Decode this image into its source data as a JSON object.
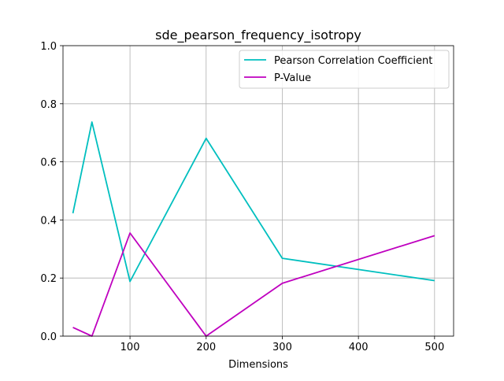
{
  "chart_data": {
    "type": "line",
    "title": "sde_pearson_frequency_isotropy",
    "xlabel": "Dimensions",
    "ylabel": "",
    "xlim": [
      12,
      525
    ],
    "ylim": [
      0,
      1
    ],
    "x_ticks": [
      100,
      200,
      300,
      400,
      500
    ],
    "y_ticks": [
      0.0,
      0.2,
      0.4,
      0.6,
      0.8,
      1.0
    ],
    "x_tick_labels": [
      "100",
      "200",
      "300",
      "400",
      "500"
    ],
    "y_tick_labels": [
      "0.0",
      "0.2",
      "0.4",
      "0.6",
      "0.8",
      "1.0"
    ],
    "grid": true,
    "legend_position": "top-right",
    "x": [
      25,
      50,
      100,
      200,
      300,
      500
    ],
    "series": [
      {
        "name": "Pearson Correlation Coefficient",
        "color": "#00bfbf",
        "values": [
          0.423,
          0.737,
          0.188,
          0.681,
          0.268,
          0.191
        ]
      },
      {
        "name": "P-Value",
        "color": "#bf00bf",
        "values": [
          0.03,
          0.0,
          0.355,
          0.0,
          0.182,
          0.346
        ]
      }
    ]
  }
}
